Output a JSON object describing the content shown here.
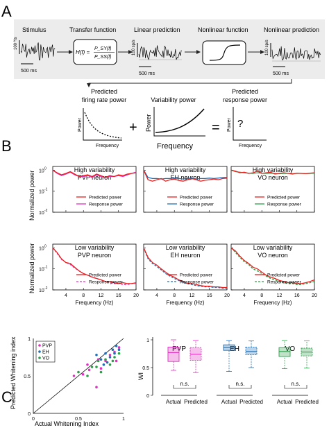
{
  "panel_a": {
    "letter": "A",
    "stages": [
      "Stimulus",
      "Transfer function",
      "Linear prediction",
      "Nonlinear function",
      "Nonlinear prediction"
    ],
    "stim_unit": "100 º/s",
    "rate_unit": "100 sp/s",
    "scale_label": "500 ms",
    "formula_lhs": "H(f) =",
    "formula_num": "P_SY(f)",
    "formula_den": "P_SS(f)",
    "predicted_power_title": [
      "Predicted",
      "firing rate power"
    ],
    "variability_title": "Variability power",
    "response_power_title": [
      "Predicted",
      "response power"
    ],
    "power_label": "Power",
    "frequency_label": "Frequency",
    "plus": "+",
    "equals": "=",
    "question": "?"
  },
  "panel_b": {
    "letter": "B",
    "ylabel": "Normalized power",
    "xlabel": "Frequency (Hz)",
    "xticks": [
      "4",
      "8",
      "12",
      "16",
      "20"
    ],
    "yticks": [
      "10^0",
      "10^-1",
      "10^-2"
    ],
    "colors": {
      "PVP": "#e030c0",
      "EH": "#1f6fb5",
      "VO": "#2aa048",
      "predicted": "#e8201e"
    },
    "panels": [
      {
        "title": [
          "High variability",
          "PVP neuron"
        ],
        "group": "PVP",
        "legend": [
          "Predicted power",
          "Response power"
        ],
        "dashed": false
      },
      {
        "title": [
          "High variability",
          "EH neuron"
        ],
        "group": "EH",
        "legend": [
          "Predicted power",
          "Response power"
        ],
        "dashed": false
      },
      {
        "title": [
          "High variability",
          "VO neuron"
        ],
        "group": "VO",
        "legend": [
          "Predicted power",
          "Response power"
        ],
        "dashed": false
      },
      {
        "title": [
          "Low variability",
          "PVP neuron"
        ],
        "group": "PVP",
        "legend": [
          "Predicted power",
          "Response power"
        ],
        "dashed": true
      },
      {
        "title": [
          "Low variability",
          "EH neuron"
        ],
        "group": "EH",
        "legend": [
          "Predicted power",
          "Response power"
        ],
        "dashed": true
      },
      {
        "title": [
          "Low variability",
          "VO neuron"
        ],
        "group": "VO",
        "legend": [
          "Predicted power",
          "Response power"
        ],
        "dashed": true
      }
    ]
  },
  "panel_c": {
    "letter": "C",
    "scatter_xlabel": "Actual Whitening Index",
    "scatter_ylabel": "Predicted Whitening index",
    "scatter_ticks": [
      "0",
      "0.5",
      "1"
    ],
    "scatter_legend": [
      "PVP",
      "EH",
      "VO"
    ],
    "box_ylabel": "WI",
    "box_ticks": [
      "0",
      "0.5",
      "1"
    ],
    "box_groups": [
      "PVP",
      "EH",
      "VO"
    ],
    "box_xlabels": [
      "Actual",
      "Predicted"
    ],
    "ns": "n.s."
  },
  "chart_data": [
    {
      "type": "line",
      "title": "High variability PVP neuron",
      "xlabel": "Frequency (Hz)",
      "ylabel": "Normalized power",
      "xlim": [
        1,
        20
      ],
      "ylim": [
        0.01,
        1.5
      ],
      "yscale": "log",
      "x": [
        1,
        2,
        3,
        4,
        5,
        6,
        7,
        8,
        9,
        10,
        11,
        12,
        13,
        14,
        15,
        16,
        17,
        18,
        19,
        20
      ],
      "series": [
        {
          "name": "Predicted power",
          "values": [
            1.0,
            0.75,
            0.6,
            0.7,
            0.85,
            0.65,
            0.5,
            0.55,
            0.6,
            0.5,
            0.65,
            0.55,
            0.45,
            0.55,
            0.5,
            0.6,
            0.55,
            0.65,
            0.7,
            0.75
          ]
        },
        {
          "name": "Response power",
          "values": [
            1.0,
            0.7,
            0.55,
            0.65,
            0.8,
            0.6,
            0.5,
            0.5,
            0.55,
            0.45,
            0.6,
            0.5,
            0.45,
            0.5,
            0.5,
            0.55,
            0.5,
            0.6,
            0.7,
            0.8
          ]
        }
      ]
    },
    {
      "type": "line",
      "title": "High variability EH neuron",
      "xlabel": "Frequency (Hz)",
      "ylabel": "Normalized power",
      "xlim": [
        1,
        20
      ],
      "ylim": [
        0.01,
        1.5
      ],
      "yscale": "log",
      "x": [
        1,
        2,
        3,
        4,
        5,
        6,
        7,
        8,
        9,
        10,
        11,
        12,
        13,
        14,
        15,
        16,
        17,
        18,
        19,
        20
      ],
      "series": [
        {
          "name": "Predicted power",
          "values": [
            1.0,
            0.35,
            0.3,
            0.35,
            0.4,
            0.3,
            0.35,
            0.38,
            0.32,
            0.3,
            0.35,
            0.4,
            0.35,
            0.3,
            0.33,
            0.35,
            0.38,
            0.35,
            0.4,
            0.42
          ]
        },
        {
          "name": "Response power",
          "values": [
            1.0,
            0.45,
            0.4,
            0.4,
            0.38,
            0.4,
            0.4,
            0.42,
            0.4,
            0.38,
            0.4,
            0.42,
            0.38,
            0.4,
            0.4,
            0.42,
            0.4,
            0.42,
            0.45,
            0.45
          ]
        }
      ]
    },
    {
      "type": "line",
      "title": "High variability VO neuron",
      "xlabel": "Frequency (Hz)",
      "ylabel": "Normalized power",
      "xlim": [
        1,
        20
      ],
      "ylim": [
        0.01,
        1.5
      ],
      "yscale": "log",
      "x": [
        1,
        2,
        3,
        4,
        5,
        6,
        7,
        8,
        9,
        10,
        11,
        12,
        13,
        14,
        15,
        16,
        17,
        18,
        19,
        20
      ],
      "series": [
        {
          "name": "Predicted power",
          "values": [
            1.0,
            0.9,
            0.75,
            0.8,
            0.7,
            0.75,
            0.9,
            0.7,
            0.75,
            0.8,
            0.65,
            0.7,
            0.75,
            0.7,
            0.65,
            0.72,
            0.7,
            0.68,
            0.72,
            0.75
          ]
        },
        {
          "name": "Response power",
          "values": [
            1.0,
            0.85,
            0.8,
            0.75,
            0.72,
            0.7,
            0.75,
            0.72,
            0.7,
            0.72,
            0.7,
            0.68,
            0.7,
            0.7,
            0.68,
            0.7,
            0.7,
            0.68,
            0.7,
            0.72
          ]
        }
      ]
    },
    {
      "type": "line",
      "title": "Low variability PVP neuron",
      "xlabel": "Frequency (Hz)",
      "ylabel": "Normalized power",
      "xlim": [
        1,
        20
      ],
      "ylim": [
        0.01,
        1.5
      ],
      "yscale": "log",
      "x": [
        1,
        2,
        3,
        4,
        5,
        6,
        7,
        8,
        9,
        10,
        11,
        12,
        13,
        14,
        15,
        16,
        17,
        18,
        19,
        20
      ],
      "series": [
        {
          "name": "Predicted power",
          "values": [
            1.0,
            0.6,
            0.3,
            0.2,
            0.18,
            0.12,
            0.08,
            0.06,
            0.05,
            0.04,
            0.035,
            0.03,
            0.025,
            0.025,
            0.022,
            0.02,
            0.022,
            0.02,
            0.02,
            0.022
          ]
        },
        {
          "name": "Response power",
          "values": [
            1.0,
            0.55,
            0.28,
            0.2,
            0.16,
            0.11,
            0.08,
            0.06,
            0.05,
            0.04,
            0.035,
            0.03,
            0.025,
            0.022,
            0.02,
            0.02,
            0.018,
            0.018,
            0.02,
            0.02
          ]
        }
      ]
    },
    {
      "type": "line",
      "title": "Low variability EH neuron",
      "xlabel": "Frequency (Hz)",
      "ylabel": "Normalized power",
      "xlim": [
        1,
        20
      ],
      "ylim": [
        0.01,
        1.5
      ],
      "yscale": "log",
      "x": [
        1,
        2,
        3,
        4,
        5,
        6,
        7,
        8,
        9,
        10,
        11,
        12,
        13,
        14,
        15,
        16,
        17,
        18,
        19,
        20
      ],
      "series": [
        {
          "name": "Predicted power",
          "values": [
            1.0,
            0.35,
            0.2,
            0.15,
            0.1,
            0.07,
            0.05,
            0.04,
            0.03,
            0.025,
            0.02,
            0.02,
            0.018,
            0.016,
            0.015,
            0.015,
            0.014,
            0.014,
            0.013,
            0.013
          ]
        },
        {
          "name": "Response power",
          "values": [
            1.0,
            0.3,
            0.18,
            0.13,
            0.09,
            0.06,
            0.045,
            0.035,
            0.028,
            0.022,
            0.02,
            0.018,
            0.016,
            0.015,
            0.014,
            0.014,
            0.013,
            0.013,
            0.012,
            0.012
          ]
        }
      ]
    },
    {
      "type": "line",
      "title": "Low variability VO neuron",
      "xlabel": "Frequency (Hz)",
      "ylabel": "Normalized power",
      "xlim": [
        1,
        20
      ],
      "ylim": [
        0.01,
        1.5
      ],
      "yscale": "log",
      "x": [
        1,
        2,
        3,
        4,
        5,
        6,
        7,
        8,
        9,
        10,
        11,
        12,
        13,
        14,
        15,
        16,
        17,
        18,
        19,
        20
      ],
      "series": [
        {
          "name": "Predicted power",
          "values": [
            1.0,
            0.7,
            0.4,
            0.25,
            0.18,
            0.12,
            0.1,
            0.07,
            0.05,
            0.04,
            0.035,
            0.028,
            0.025,
            0.022,
            0.022,
            0.02,
            0.02,
            0.022,
            0.025,
            0.03
          ]
        },
        {
          "name": "Response power",
          "values": [
            1.0,
            0.6,
            0.35,
            0.22,
            0.16,
            0.1,
            0.08,
            0.06,
            0.045,
            0.035,
            0.03,
            0.025,
            0.022,
            0.02,
            0.02,
            0.018,
            0.018,
            0.02,
            0.022,
            0.025
          ]
        }
      ]
    },
    {
      "type": "scatter",
      "xlabel": "Actual Whitening Index",
      "ylabel": "Predicted Whitening index",
      "xlim": [
        0,
        1
      ],
      "ylim": [
        0,
        1
      ],
      "series": [
        {
          "name": "PVP",
          "points": [
            [
              0.45,
              0.5
            ],
            [
              0.55,
              0.52
            ],
            [
              0.62,
              0.58
            ],
            [
              0.7,
              0.35
            ],
            [
              0.75,
              0.6
            ],
            [
              0.8,
              0.7
            ],
            [
              0.85,
              0.78
            ],
            [
              0.9,
              0.82
            ],
            [
              0.92,
              0.7
            ],
            [
              0.95,
              0.88
            ],
            [
              0.6,
              0.65
            ],
            [
              0.72,
              0.72
            ]
          ]
        },
        {
          "name": "EH",
          "points": [
            [
              0.7,
              0.78
            ],
            [
              0.75,
              0.72
            ],
            [
              0.8,
              0.8
            ],
            [
              0.85,
              0.75
            ],
            [
              0.88,
              0.85
            ],
            [
              0.9,
              0.8
            ],
            [
              0.92,
              0.9
            ],
            [
              0.95,
              0.85
            ],
            [
              0.82,
              0.68
            ],
            [
              0.78,
              0.65
            ]
          ]
        },
        {
          "name": "VO",
          "points": [
            [
              0.5,
              0.55
            ],
            [
              0.65,
              0.62
            ],
            [
              0.7,
              0.62
            ],
            [
              0.72,
              0.7
            ],
            [
              0.8,
              0.72
            ],
            [
              0.85,
              0.65
            ],
            [
              0.88,
              0.7
            ],
            [
              0.9,
              0.75
            ],
            [
              0.95,
              0.8
            ],
            [
              0.6,
              0.5
            ],
            [
              0.75,
              0.55
            ]
          ]
        }
      ]
    },
    {
      "type": "box",
      "ylabel": "WI",
      "ylim": [
        0,
        1.05
      ],
      "groups": [
        {
          "name": "PVP",
          "boxes": [
            {
              "label": "Actual",
              "whisker_low": 0.45,
              "q1": 0.61,
              "median": 0.77,
              "q3": 0.87,
              "whisker_high": 1.0
            },
            {
              "label": "Predicted",
              "whisker_low": 0.41,
              "q1": 0.63,
              "median": 0.74,
              "q3": 0.86,
              "whisker_high": 0.99
            }
          ]
        },
        {
          "name": "EH",
          "boxes": [
            {
              "label": "Actual",
              "whisker_low": 0.43,
              "q1": 0.81,
              "median": 0.86,
              "q3": 0.91,
              "whisker_high": 0.99
            },
            {
              "label": "Predicted",
              "whisker_low": 0.5,
              "q1": 0.73,
              "median": 0.79,
              "q3": 0.87,
              "whisker_high": 0.98
            }
          ]
        },
        {
          "name": "VO",
          "boxes": [
            {
              "label": "Actual",
              "whisker_low": 0.48,
              "q1": 0.7,
              "median": 0.79,
              "q3": 0.86,
              "whisker_high": 0.99
            },
            {
              "label": "Predicted",
              "whisker_low": 0.49,
              "q1": 0.71,
              "median": 0.78,
              "q3": 0.85,
              "whisker_high": 0.98
            }
          ]
        }
      ]
    }
  ]
}
